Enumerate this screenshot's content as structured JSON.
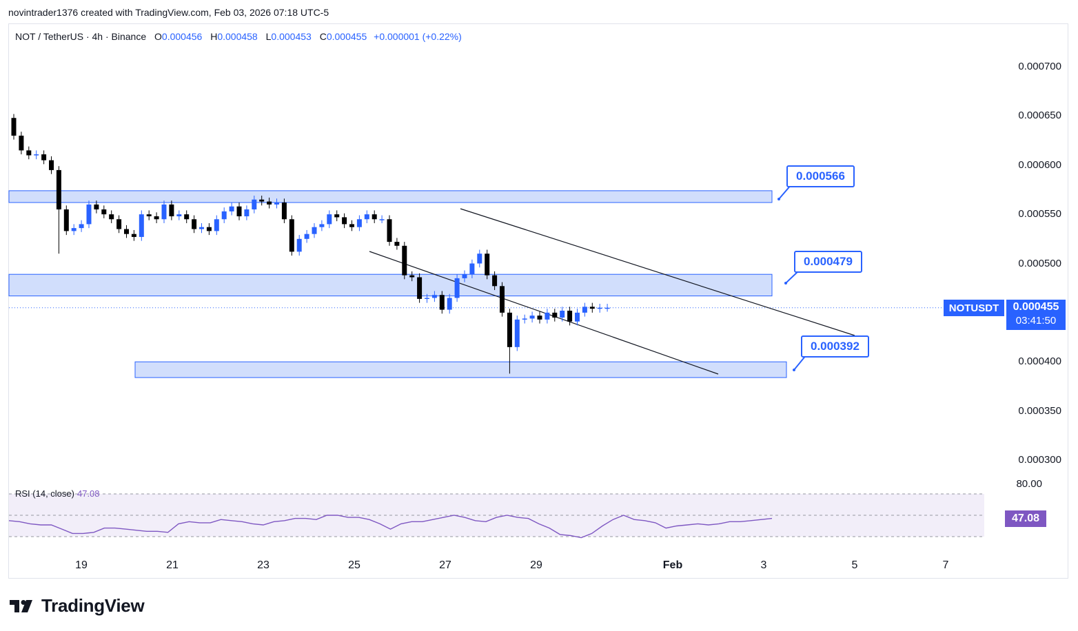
{
  "caption": "novintrader1376 created with TradingView.com, Feb 03, 2026 07:18 UTC-5",
  "legend": {
    "symbol_line": "NOT / TetherUS · 4h · Binance",
    "open_label": "O",
    "open": "0.000456",
    "high_label": "H",
    "high": "0.000458",
    "low_label": "L",
    "low": "0.000453",
    "close_label": "C",
    "close": "0.000455",
    "change": "+0.000001 (+0.22%)"
  },
  "rsi_legend": {
    "label": "RSI (14, close)",
    "value": "47.08"
  },
  "price_axis_ticks": [
    "0.000700",
    "0.000650",
    "0.000600",
    "0.000550",
    "0.000500",
    "0.000400",
    "0.000350",
    "0.000300"
  ],
  "rsi_axis_tick": "80.00",
  "symbol_badge": "NOTUSDT",
  "price_badge": {
    "price": "0.000455",
    "countdown": "03:41:50"
  },
  "rsi_badge": "47.08",
  "callouts": [
    "0.000566",
    "0.000479",
    "0.000392"
  ],
  "time_ticks": [
    "19",
    "21",
    "23",
    "25",
    "27",
    "29",
    "Feb",
    "3",
    "5",
    "7"
  ],
  "logo_text": "TradingView",
  "colors": {
    "up": "#2962ff",
    "down": "#000000",
    "zone_fill": "#d1defc",
    "zone_border": "#2962ff",
    "rsi_line": "#7e57c2",
    "rsi_band": "#7e57c21a"
  },
  "chart_data": {
    "type": "candlestick",
    "pair": "NOT/USDT",
    "timeframe": "4h",
    "ylim": [
      0.000285,
      0.000725
    ],
    "zones": [
      {
        "low": 0.000562,
        "high": 0.000574
      },
      {
        "low": 0.000467,
        "high": 0.000489
      },
      {
        "low": 0.000384,
        "high": 0.0004
      }
    ],
    "levels": [
      0.000566,
      0.000479,
      0.000392
    ],
    "last_price": 0.000455,
    "candles_close": [
      0.00063,
      0.000615,
      0.00061,
      0.000611,
      0.000605,
      0.000595,
      0.000555,
      0.000533,
      0.000536,
      0.00054,
      0.00056,
      0.000555,
      0.00055,
      0.000545,
      0.000535,
      0.00053,
      0.000527,
      0.00055,
      0.000548,
      0.000545,
      0.00056,
      0.000548,
      0.00055,
      0.000545,
      0.000535,
      0.000537,
      0.000533,
      0.000545,
      0.000553,
      0.000558,
      0.000548,
      0.000555,
      0.000565,
      0.000563,
      0.00056,
      0.000562,
      0.000545,
      0.000512,
      0.000525,
      0.00053,
      0.000537,
      0.00054,
      0.00055,
      0.000547,
      0.00054,
      0.000537,
      0.000545,
      0.00055,
      0.000545,
      0.000545,
      0.000522,
      0.000518,
      0.000488,
      0.000486,
      0.000464,
      0.000465,
      0.000468,
      0.000453,
      0.000465,
      0.000485,
      0.000489,
      0.0005,
      0.00051,
      0.000488,
      0.000477,
      0.00045,
      0.000415,
      0.000443,
      0.000444,
      0.000447,
      0.000443,
      0.00045,
      0.000445,
      0.000452,
      0.000441,
      0.00045,
      0.000456,
      0.000454,
      0.000455,
      0.000455
    ]
  },
  "rsi_data": [
    45,
    44,
    42,
    41,
    41,
    37,
    33,
    33,
    34,
    38,
    38,
    37,
    36,
    35,
    35,
    34,
    42,
    44,
    43,
    43,
    46,
    45,
    44,
    42,
    41,
    44,
    45,
    47,
    47,
    46,
    50,
    50,
    48,
    48,
    46,
    42,
    37,
    42,
    44,
    44,
    46,
    48,
    50,
    48,
    45,
    44,
    48,
    50,
    48,
    47,
    42,
    38,
    32,
    31,
    29,
    33,
    40,
    46,
    50,
    46,
    45,
    43,
    38,
    40,
    41,
    42,
    41,
    42,
    44,
    44,
    45,
    46,
    47
  ]
}
